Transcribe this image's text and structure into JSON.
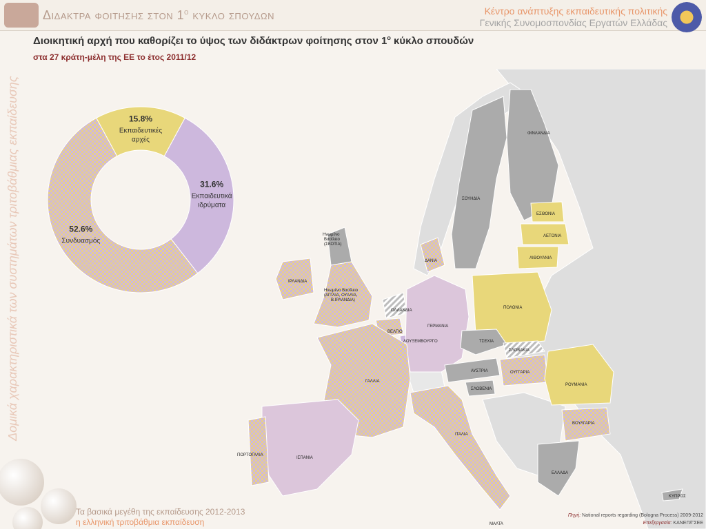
{
  "header": {
    "title": "Διδακτρα φοιτησης στον 1",
    "title_sup": "ο",
    "title_end": " κυκλο σπουδων",
    "org_line1": "Κέντρο ανάπτυξης εκπαιδευτικής πολιτικής",
    "org_line2": "Γενικής Συνομοσπονδίας Εργατών Ελλάδας"
  },
  "title": {
    "main": "Διοικητική αρχή που καθορίζει το ύψος των διδάκτρων φοίτησης στον 1",
    "main_sup": "ο",
    "main_end": " κύκλο σπουδών",
    "sub": "στα 27 κράτη-μέλη της ΕΕ το έτος 2011/12"
  },
  "side_text": "Δομικά χαρακτηριστικά των συστημάτων τριτοβάθμιας εκπαίδευσης",
  "footer": {
    "line1": "Τα βασικά μεγέθη της εκπαίδευσης 2012-2013",
    "line2": "η ελληνική τριτοβάθμια εκπαίδευση",
    "source_label": "Πηγή:",
    "source": " National reports regarding (Bologna Process) 2009-2012",
    "processing_label": "Επεξεργασία:",
    "processing": " ΚΑΝΕΠ/ΓΣΕΕ"
  },
  "colors": {
    "authorities": "#e8d77a",
    "institutions": "#cdb8dd",
    "combined_a": "#e8cf8c",
    "combined_b": "#cdb8dd",
    "no_fees": "#ababab",
    "hatched": "#d0d0d0",
    "non_eu": "#dedede"
  },
  "chart_data": {
    "type": "pie",
    "donut": true,
    "title": "Διοικητική αρχή που καθορίζει το ύψος των διδάκτρων φοίτησης στον 1ο κύκλο σπουδών",
    "categories": [
      "Εκπαιδευτικές αρχές",
      "Εκπαιδευτικά ιδρύματα",
      "Συνδυασμός"
    ],
    "values": [
      15.8,
      31.6,
      52.6
    ],
    "value_labels": [
      "15.8%",
      "31.6%",
      "52.6%"
    ],
    "label_lines": [
      [
        "Εκπαιδευτικές",
        "αρχές"
      ],
      [
        "Εκπαιδευτικά",
        "ιδρύματα"
      ],
      [
        "Συνδυασμός"
      ]
    ]
  },
  "map_labels": {
    "finland": "ΦΙΝΛΑΝΔΙΑ",
    "sweden": "ΣΟΥΗΔΙΑ",
    "estonia": "ΕΣΘΟΝΙΑ",
    "latvia": "ΛΕΤΟΝΙΑ",
    "lithuania": "ΛΙΘΟΥΑΝΙΑ",
    "scotland1": "Ηνωμένο",
    "scotland2": "Βασίλειο",
    "scotland3": "(ΣΚΟΤΙΑ)",
    "denmark": "ΔΑΝΙΑ",
    "ireland": "ΙΡΛΑΝΔΙΑ",
    "uk1": "Ηνωμένο Βασίλειο",
    "uk2": "(ΑΓΓΛΙΑ, ΟΥΑΛΙΑ,",
    "uk3": "Β.ΙΡΛΑΝΔΙΑ)",
    "netherlands": "ΟΛΛΑΝΔΙΑ",
    "germany": "ΓΕΡΜΑΝΙΑ",
    "poland": "ΠΟΛΩΝΙΑ",
    "belgium": "ΒΕΛΓΙΟ",
    "luxembourg": "ΛΟΥΞΕΜΒΟΥΡΓΟ",
    "czechia": "ΤΣΕΧΙΑ",
    "slovakia": "ΣΛΟΒΑΚΙΑ",
    "austria": "ΑΥΣΤΡΙΑ",
    "hungary": "ΟΥΓΓΑΡΙΑ",
    "slovenia": "ΣΛΟΒΕΝΙΑ",
    "france": "ΓΑΛΛΙΑ",
    "romania": "ΡΟΥΜΑΝΙΑ",
    "bulgaria": "ΒΟΥΛΓΑΡΙΑ",
    "italy": "ΙΤΑΛΙΑ",
    "portugal": "ΠΟΡΤΟΓΑΛΙΑ",
    "spain": "ΙΣΠΑΝΙΑ",
    "greece": "ΕΛΛΑΔΑ",
    "cyprus": "ΚΥΠΡΟΣ",
    "malta": "ΜΑΛΤΑ"
  }
}
